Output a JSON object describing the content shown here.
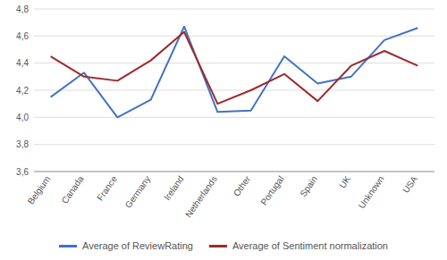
{
  "chart_data": {
    "type": "line",
    "categories": [
      "Belgium",
      "Canada",
      "France",
      "Germany",
      "Ireland",
      "Netherlands",
      "Other",
      "Portugal",
      "Spain",
      "UK",
      "Unknown",
      "USA"
    ],
    "series": [
      {
        "name": "Average of ReviewRating",
        "color": "#4472c4",
        "values": [
          4.15,
          4.33,
          4.0,
          4.13,
          4.67,
          4.04,
          4.05,
          4.45,
          4.25,
          4.3,
          4.57,
          4.66
        ]
      },
      {
        "name": "Average of Sentiment normalization",
        "color": "#9e2a2b",
        "values": [
          4.45,
          4.3,
          4.27,
          4.42,
          4.63,
          4.1,
          4.2,
          4.32,
          4.12,
          4.38,
          4.49,
          4.38
        ]
      }
    ],
    "ylim": [
      3.6,
      4.8
    ],
    "yticks": [
      {
        "value": 3.6,
        "label": "3,6"
      },
      {
        "value": 3.8,
        "label": "3,8"
      },
      {
        "value": 4.0,
        "label": "4,0"
      },
      {
        "value": 4.2,
        "label": "4,2"
      },
      {
        "value": 4.4,
        "label": "4,4"
      },
      {
        "value": 4.6,
        "label": "4,6"
      },
      {
        "value": 4.8,
        "label": "4,8"
      }
    ],
    "grid": true,
    "legend": "bottom"
  }
}
